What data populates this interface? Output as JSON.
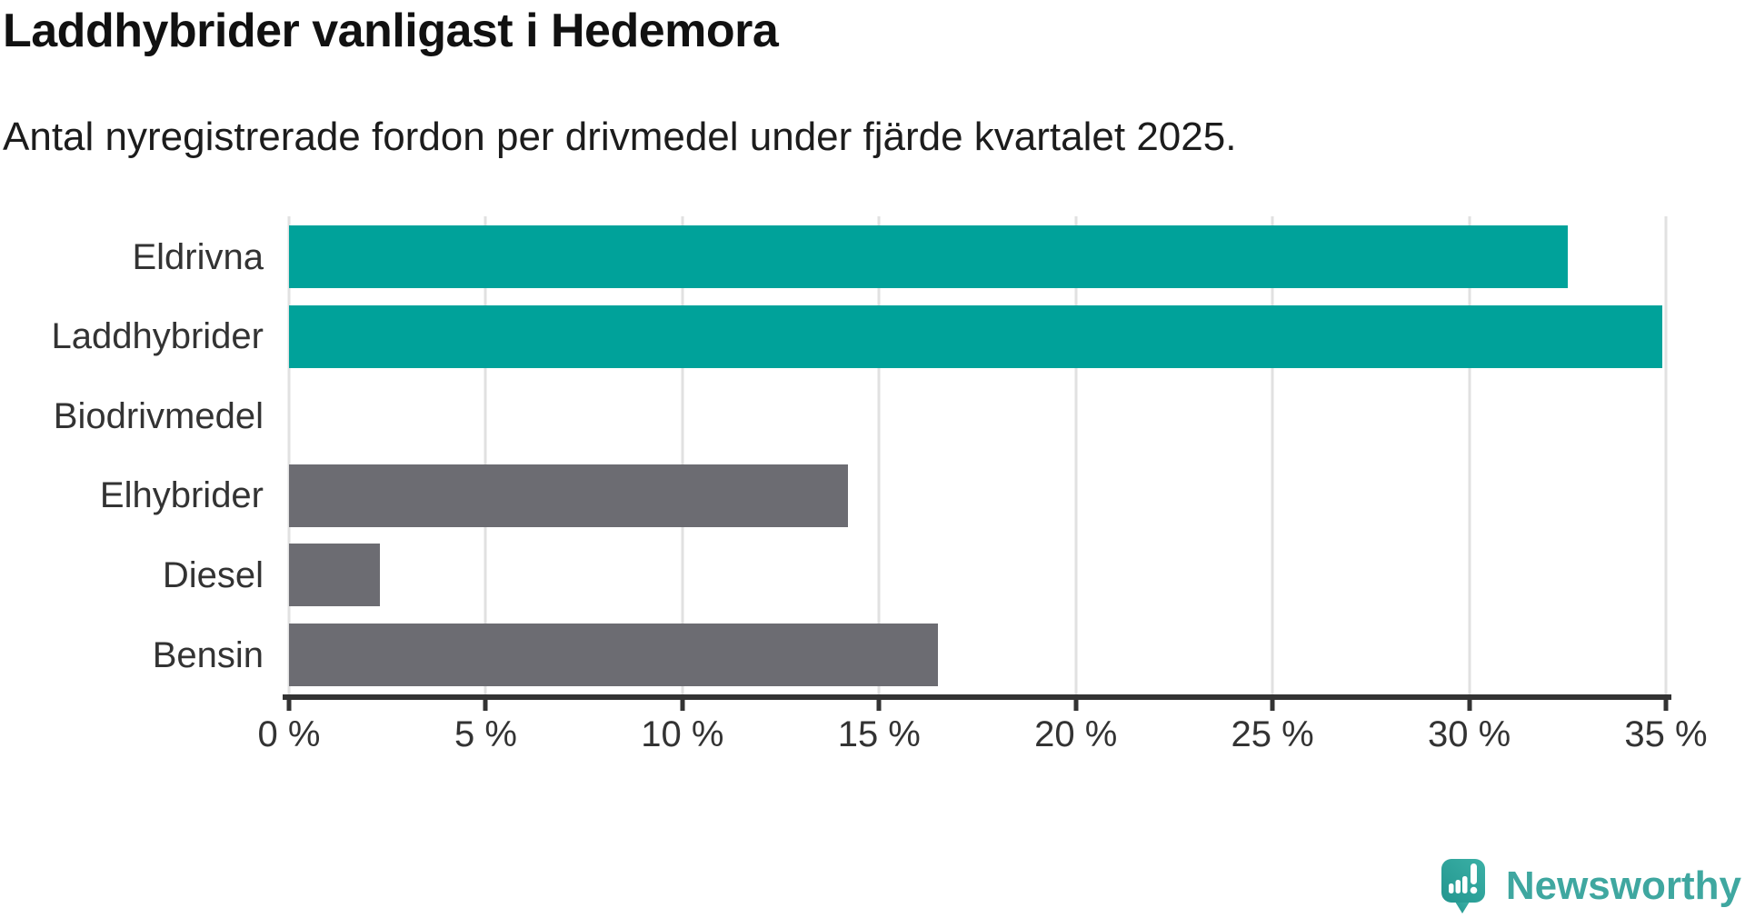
{
  "header": {
    "title": "Laddhybrider vanligast i Hedemora",
    "subtitle": "Antal nyregistrerade fordon per drivmedel under fjärde kvartalet 2025."
  },
  "chart_data": {
    "type": "bar",
    "orientation": "horizontal",
    "title": "Laddhybrider vanligast i Hedemora",
    "subtitle": "Antal nyregistrerade fordon per drivmedel under fjärde kvartalet 2025.",
    "categories": [
      "Eldrivna",
      "Laddhybrider",
      "Biodrivmedel",
      "Elhybrider",
      "Diesel",
      "Bensin"
    ],
    "values": [
      32.5,
      34.9,
      0,
      14.2,
      2.3,
      16.5
    ],
    "unit": "%",
    "bar_colors": [
      "#00a29a",
      "#00a29a",
      "#6c6c72",
      "#6c6c72",
      "#6c6c72",
      "#6c6c72"
    ],
    "x_tick_values": [
      0,
      5,
      10,
      15,
      20,
      25,
      30,
      35
    ],
    "x_tick_labels": [
      "0 %",
      "5 %",
      "10 %",
      "15 %",
      "20 %",
      "25 %",
      "30 %",
      "35 %"
    ],
    "xlim": [
      0,
      35
    ],
    "grid": "vertical-only",
    "legend": "none"
  },
  "branding": {
    "logo_text": "Newsworthy"
  },
  "colors": {
    "highlight_teal": "#00a29a",
    "neutral_gray": "#6c6c72",
    "axis": "#333333",
    "gridline": "#e1e1e1",
    "logo_teal": "#3fa7a0",
    "logo_bubble": "#2da59c",
    "text_dark": "#111111",
    "label_gray": "#333333"
  }
}
